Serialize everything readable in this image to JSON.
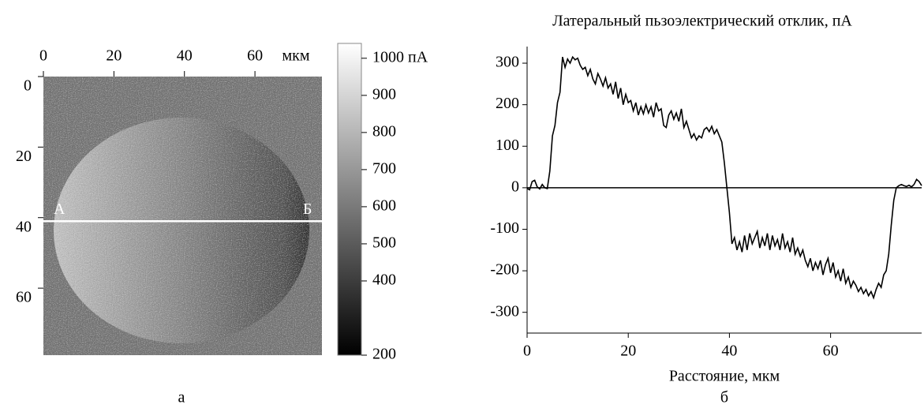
{
  "chart_data": [
    {
      "type": "image",
      "panel_label": "а",
      "xlim": [
        0,
        79
      ],
      "ylim": [
        0,
        79
      ],
      "xticks": [
        0,
        20,
        40,
        60
      ],
      "x_unit": "мкм",
      "yticks": [
        0,
        20,
        40,
        60
      ],
      "colorbar": {
        "clim": [
          200,
          1040
        ],
        "ticks": [
          {
            "value": 1000,
            "label": "1000 пА"
          },
          900,
          800,
          700,
          600,
          500,
          400,
          200
        ]
      },
      "profile_line": {
        "y": 41,
        "start_label": "А",
        "end_label": "Б"
      }
    },
    {
      "type": "line",
      "panel_label": "б",
      "title": "Латеральный пьзоэлектрический отклик, пА",
      "xlabel": "Расстояние, мкм",
      "color": "#000000",
      "zero_line": true,
      "xlim": [
        0,
        78
      ],
      "ylim": [
        -350,
        340
      ],
      "xticks": [
        0,
        20,
        40,
        60
      ],
      "yticks": [
        -300,
        -200,
        -100,
        0,
        100,
        200,
        300
      ],
      "x": [
        0,
        0.5,
        1,
        1.5,
        2,
        2.5,
        3,
        3.5,
        4,
        4.5,
        5,
        5.5,
        6,
        6.5,
        7,
        7.5,
        8,
        8.5,
        9,
        9.5,
        10,
        10.5,
        11,
        11.5,
        12,
        12.5,
        13,
        13.5,
        14,
        14.5,
        15,
        15.5,
        16,
        16.5,
        17,
        17.5,
        18,
        18.5,
        19,
        19.5,
        20,
        20.5,
        21,
        21.5,
        22,
        22.5,
        23,
        23.5,
        24,
        24.5,
        25,
        25.5,
        26,
        26.5,
        27,
        27.5,
        28,
        28.5,
        29,
        29.5,
        30,
        30.5,
        31,
        31.5,
        32,
        32.5,
        33,
        33.5,
        34,
        34.5,
        35,
        35.5,
        36,
        36.5,
        37,
        37.5,
        38,
        38.5,
        39,
        39.5,
        40,
        40.5,
        41,
        41.5,
        42,
        42.5,
        43,
        43.5,
        44,
        44.5,
        45,
        45.5,
        46,
        46.5,
        47,
        47.5,
        48,
        48.5,
        49,
        49.5,
        50,
        50.5,
        51,
        51.5,
        52,
        52.5,
        53,
        53.5,
        54,
        54.5,
        55,
        55.5,
        56,
        56.5,
        57,
        57.5,
        58,
        58.5,
        59,
        59.5,
        60,
        60.5,
        61,
        61.5,
        62,
        62.5,
        63,
        63.5,
        64,
        64.5,
        65,
        65.5,
        66,
        66.5,
        67,
        67.5,
        68,
        68.5,
        69,
        69.5,
        70,
        70.5,
        71,
        71.5,
        72,
        72.5,
        73,
        73.5,
        74,
        74.5,
        75,
        75.5,
        76,
        76.5,
        77,
        77.5,
        78
      ],
      "values": [
        -2,
        -5,
        15,
        18,
        2,
        -3,
        8,
        0,
        -2,
        40,
        125,
        150,
        205,
        230,
        315,
        290,
        310,
        300,
        315,
        308,
        312,
        295,
        285,
        290,
        270,
        285,
        262,
        250,
        275,
        262,
        245,
        265,
        240,
        250,
        225,
        255,
        215,
        240,
        200,
        225,
        205,
        210,
        185,
        205,
        175,
        195,
        178,
        200,
        180,
        195,
        170,
        205,
        185,
        190,
        150,
        145,
        175,
        185,
        165,
        180,
        160,
        190,
        145,
        160,
        140,
        120,
        130,
        115,
        125,
        120,
        140,
        145,
        135,
        148,
        130,
        140,
        125,
        110,
        60,
        0,
        -60,
        -135,
        -120,
        -150,
        -130,
        -155,
        -115,
        -150,
        -110,
        -135,
        -120,
        -105,
        -145,
        -120,
        -140,
        -110,
        -150,
        -115,
        -140,
        -125,
        -150,
        -110,
        -145,
        -130,
        -155,
        -120,
        -160,
        -145,
        -165,
        -150,
        -175,
        -190,
        -170,
        -200,
        -180,
        -195,
        -175,
        -210,
        -185,
        -170,
        -205,
        -180,
        -215,
        -200,
        -225,
        -195,
        -230,
        -215,
        -240,
        -225,
        -235,
        -250,
        -240,
        -255,
        -245,
        -260,
        -250,
        -265,
        -245,
        -230,
        -240,
        -210,
        -200,
        -160,
        -90,
        -30,
        0,
        5,
        8,
        5,
        3,
        6,
        2,
        8,
        20,
        15,
        5
      ]
    }
  ]
}
